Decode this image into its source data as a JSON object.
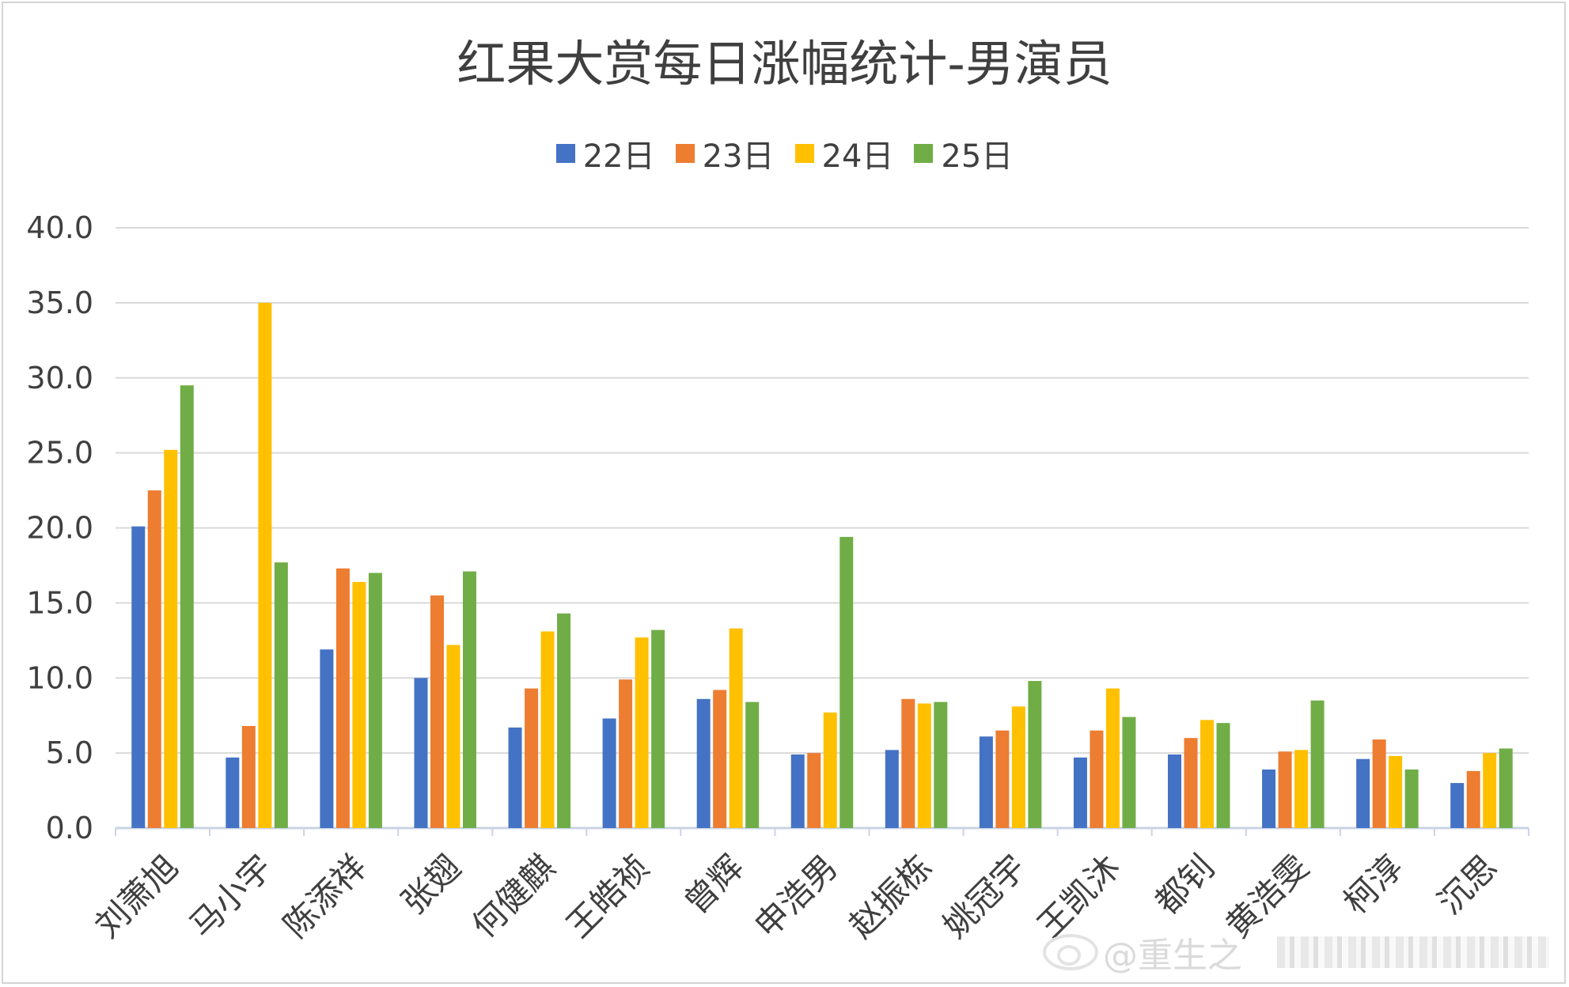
{
  "chart_data": {
    "type": "bar",
    "title": "红果大赏每日涨幅统计-男演员",
    "categories": [
      "刘萧旭",
      "马小宇",
      "陈添祥",
      "张翅",
      "何健麒",
      "王皓祯",
      "曾辉",
      "申浩男",
      "赵振栋",
      "姚冠宇",
      "王凯沐",
      "都钊",
      "黄浩雯",
      "柯淳",
      "沉思"
    ],
    "series": [
      {
        "name": "22日",
        "color": "#4472c4",
        "values": [
          20.1,
          4.7,
          11.9,
          10.0,
          6.7,
          7.3,
          8.6,
          4.9,
          5.2,
          6.1,
          4.7,
          4.9,
          3.9,
          4.6,
          3.0
        ]
      },
      {
        "name": "23日",
        "color": "#ed7d31",
        "values": [
          22.5,
          6.8,
          17.3,
          15.5,
          9.3,
          9.9,
          9.2,
          5.0,
          8.6,
          6.5,
          6.5,
          6.0,
          5.1,
          5.9,
          3.8
        ]
      },
      {
        "name": "24日",
        "color": "#ffc000",
        "values": [
          25.2,
          35.0,
          16.4,
          12.2,
          13.1,
          12.7,
          13.3,
          7.7,
          8.3,
          8.1,
          9.3,
          7.2,
          5.2,
          4.8,
          5.0
        ]
      },
      {
        "name": "25日",
        "color": "#70ad47",
        "values": [
          29.5,
          17.7,
          17.0,
          17.1,
          14.3,
          13.2,
          8.4,
          19.4,
          8.4,
          9.8,
          7.4,
          7.0,
          8.5,
          3.9,
          5.3
        ]
      }
    ],
    "yticks": [
      "0.0",
      "5.0",
      "10.0",
      "15.0",
      "20.0",
      "25.0",
      "30.0",
      "35.0",
      "40.0"
    ],
    "ylim": [
      0,
      40
    ],
    "grid": true,
    "legend": "top-center"
  },
  "watermark": {
    "text": "@重生之"
  }
}
